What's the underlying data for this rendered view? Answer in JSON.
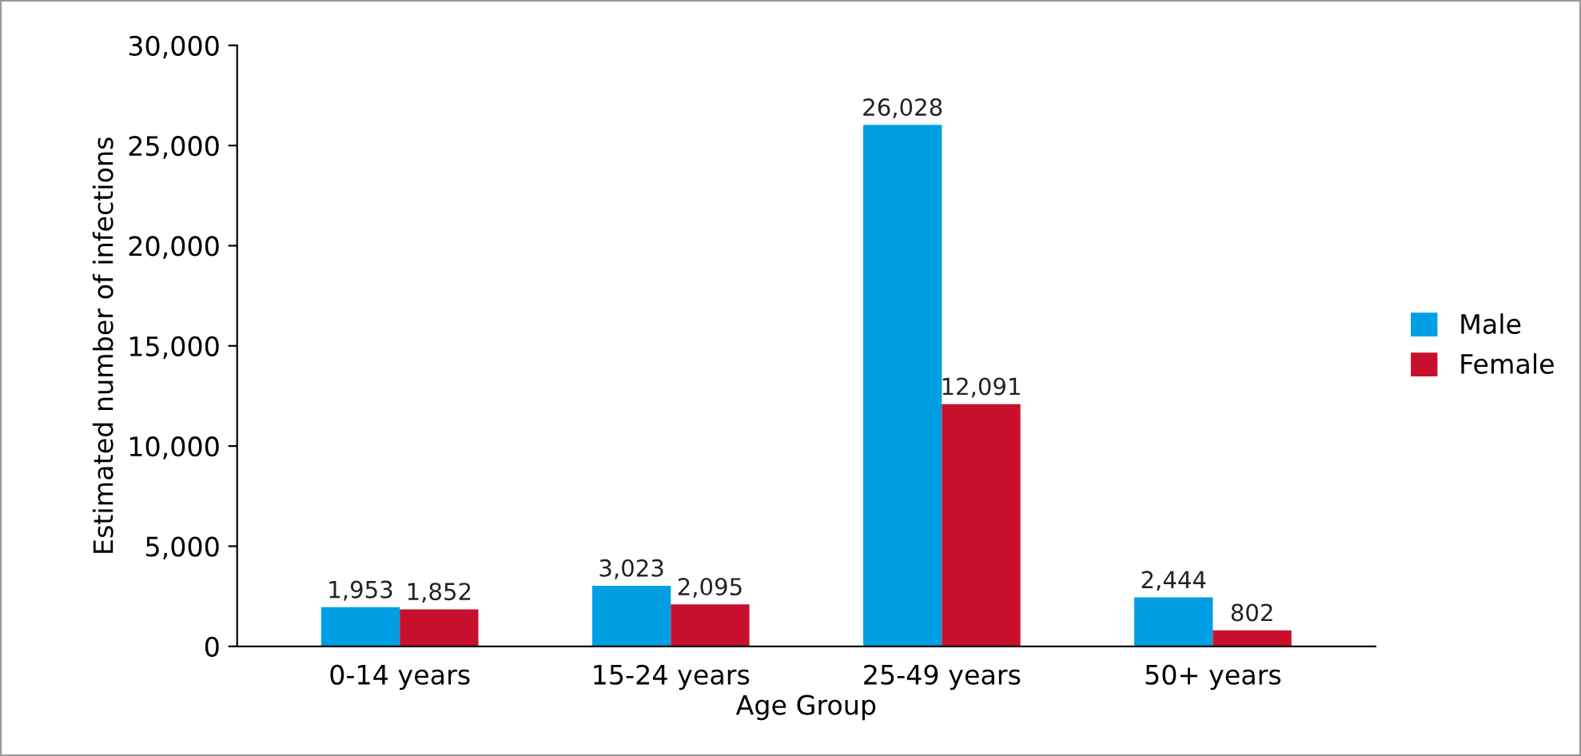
{
  "chart_data": {
    "type": "bar",
    "xlabel": "Age Group",
    "ylabel": "Estimated number of infections",
    "categories": [
      "0-14 years",
      "15-24 years",
      "25-49 years",
      "50+ years"
    ],
    "series": [
      {
        "name": "Male",
        "color": "#009fe3",
        "values": [
          1953,
          3023,
          26028,
          2444
        ],
        "value_labels": [
          "1,953",
          "3,023",
          "26,028",
          "2,444"
        ]
      },
      {
        "name": "Female",
        "color": "#c8102e",
        "values": [
          1852,
          2095,
          12091,
          802
        ],
        "value_labels": [
          "1,852",
          "2,095",
          "12,091",
          "802"
        ]
      }
    ],
    "ylim": [
      0,
      30000
    ],
    "yticks": [
      0,
      {
        "value": 5000,
        "label": "5,000"
      },
      {
        "value": 10000,
        "label": "10,000"
      },
      {
        "value": 15000,
        "label": "15,000"
      },
      {
        "value": 20000,
        "label": "20,000"
      },
      {
        "value": 25000,
        "label": "25,000"
      },
      {
        "value": 30000,
        "label": "30,000"
      }
    ],
    "grid": false,
    "legend": "right"
  }
}
